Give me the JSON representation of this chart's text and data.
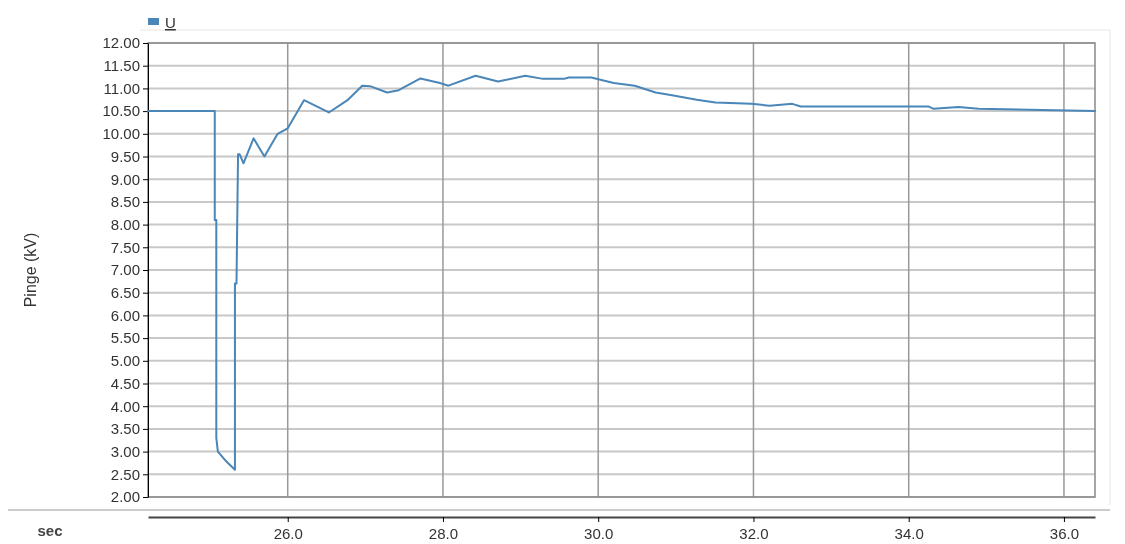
{
  "chart_data": {
    "type": "line",
    "xlabel": "sec",
    "ylabel": "Pinge (kV)",
    "legend": "top left",
    "grid": true,
    "marker": "none",
    "line_style": "solid",
    "xlim": [
      24.2,
      36.4
    ],
    "xticks": [
      {
        "value": 26,
        "label": "26.0"
      },
      {
        "value": 28,
        "label": "28.0"
      },
      {
        "value": 30,
        "label": "30.0"
      },
      {
        "value": 32,
        "label": "32.0"
      },
      {
        "value": 34,
        "label": "34.0"
      },
      {
        "value": 36,
        "label": "36.0"
      }
    ],
    "ylim": [
      2,
      12
    ],
    "yticks": [
      {
        "value": 2,
        "label": "2.00"
      },
      {
        "value": 2.5,
        "label": "2.50"
      },
      {
        "value": 3,
        "label": "3.00"
      },
      {
        "value": 3.5,
        "label": "3.50"
      },
      {
        "value": 4,
        "label": "4.00"
      },
      {
        "value": 4.5,
        "label": "4.50"
      },
      {
        "value": 5,
        "label": "5.00"
      },
      {
        "value": 5.5,
        "label": "5.50"
      },
      {
        "value": 6,
        "label": "6.00"
      },
      {
        "value": 6.5,
        "label": "6.50"
      },
      {
        "value": 7,
        "label": "7.00"
      },
      {
        "value": 7.5,
        "label": "7.50"
      },
      {
        "value": 8,
        "label": "8.00"
      },
      {
        "value": 8.5,
        "label": "8.50"
      },
      {
        "value": 9,
        "label": "9.00"
      },
      {
        "value": 9.5,
        "label": "9.50"
      },
      {
        "value": 10,
        "label": "10.00"
      },
      {
        "value": 10.5,
        "label": "10.50"
      },
      {
        "value": 11,
        "label": "11.00"
      },
      {
        "value": 11.5,
        "label": "11.50"
      },
      {
        "value": 12,
        "label": "12.00"
      }
    ],
    "series": [
      {
        "name": "U",
        "color": "#4a86b8",
        "x": [
          24.2,
          25.06,
          25.06,
          25.08,
          25.08,
          25.1,
          25.2,
          25.32,
          25.32,
          25.34,
          25.36,
          25.38,
          25.43,
          25.56,
          25.7,
          25.87,
          26.0,
          26.21,
          26.53,
          26.77,
          26.96,
          27.06,
          27.28,
          27.43,
          27.71,
          27.96,
          28.07,
          28.42,
          28.71,
          29.06,
          29.29,
          29.56,
          29.62,
          29.91,
          30.2,
          30.47,
          30.74,
          30.95,
          31.27,
          31.51,
          31.97,
          32.21,
          32.5,
          32.61,
          34.26,
          34.32,
          34.64,
          34.9,
          36.4
        ],
        "values": [
          10.5,
          10.5,
          8.1,
          8.1,
          3.3,
          3.0,
          2.8,
          2.6,
          6.7,
          6.7,
          9.55,
          9.55,
          9.35,
          9.9,
          9.5,
          10.0,
          10.12,
          10.74,
          10.47,
          10.74,
          11.06,
          11.05,
          10.91,
          10.96,
          11.22,
          11.12,
          11.06,
          11.28,
          11.15,
          11.28,
          11.21,
          11.21,
          11.24,
          11.24,
          11.12,
          11.06,
          10.91,
          10.85,
          10.75,
          10.69,
          10.66,
          10.62,
          10.66,
          10.6,
          10.6,
          10.55,
          10.59,
          10.55,
          10.5
        ]
      }
    ]
  }
}
